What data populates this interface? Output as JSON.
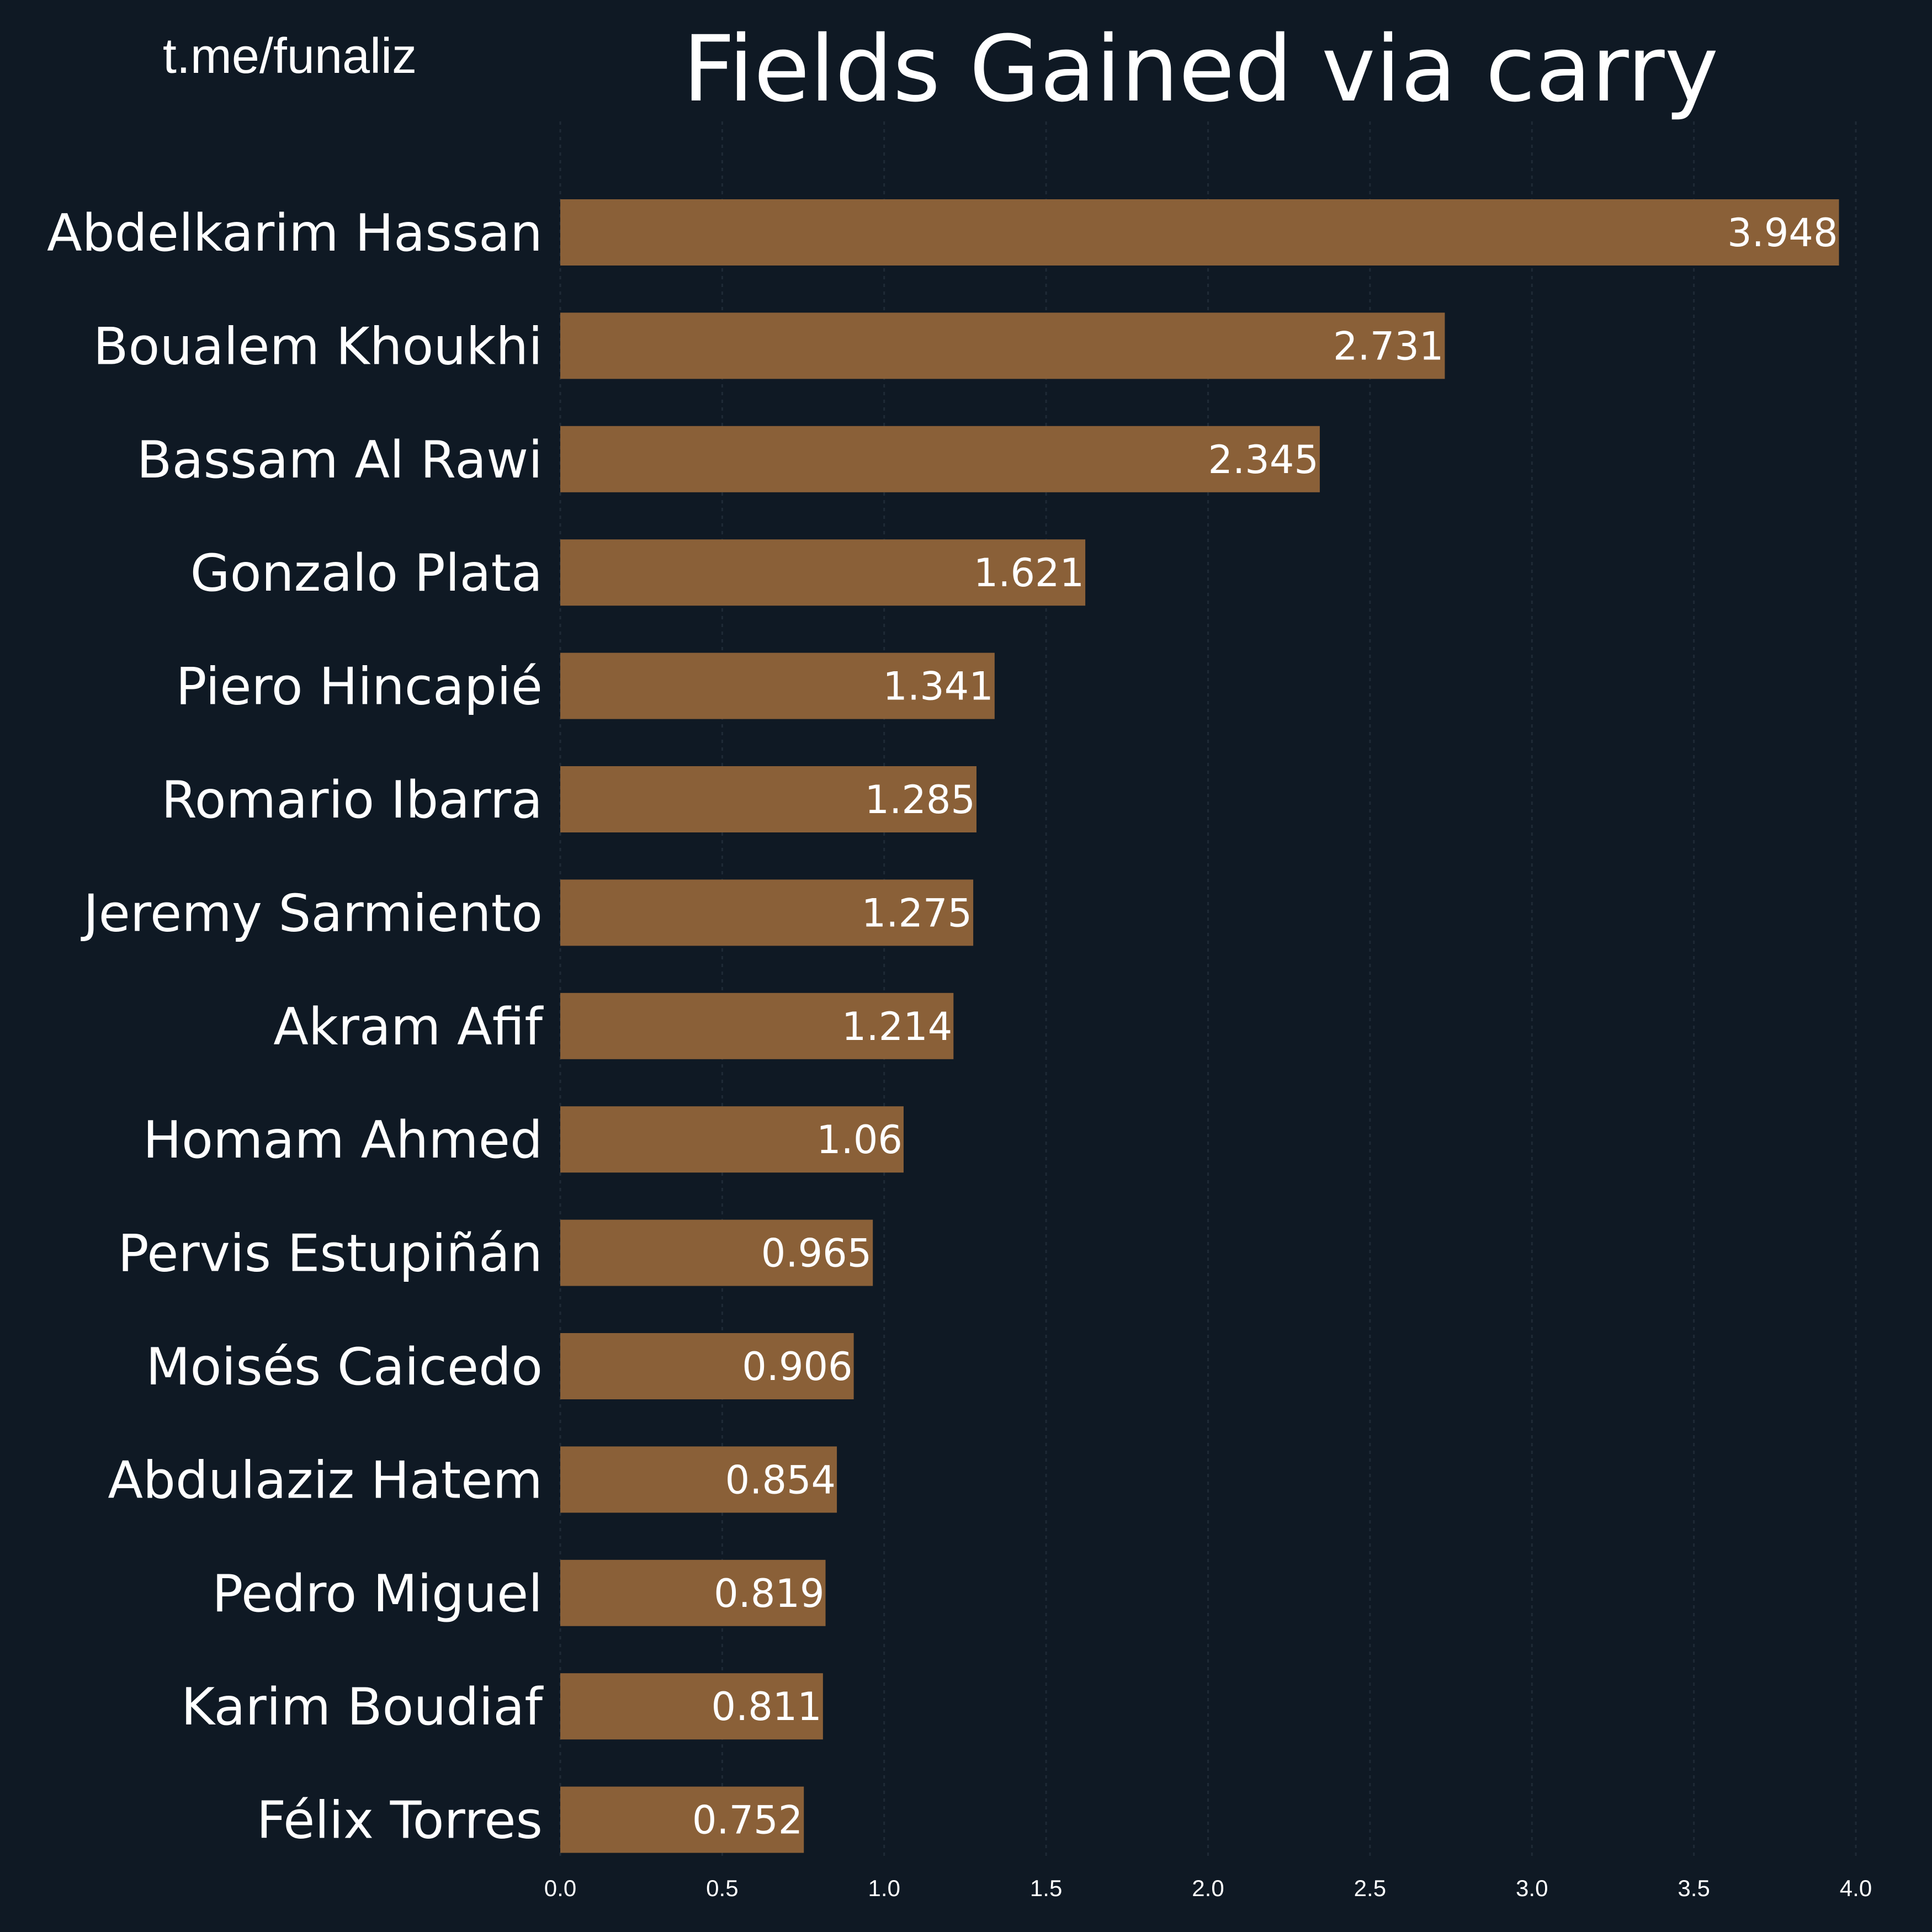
{
  "watermark": "t.me/funaliz",
  "chart_data": {
    "type": "bar",
    "orientation": "horizontal",
    "title": "Fields Gained via carry",
    "xlabel": "",
    "ylabel": "",
    "xlim": [
      0,
      4.0
    ],
    "xticks": [
      "0.0",
      "0.5",
      "1.0",
      "1.5",
      "2.0",
      "2.5",
      "3.0",
      "3.5",
      "4.0"
    ],
    "grid": true,
    "bar_color": "#8a6038",
    "background_color": "#0f1924",
    "text_color": "#ffffff",
    "categories": [
      "Abdelkarim Hassan",
      "Boualem Khoukhi",
      "Bassam Al Rawi",
      "Gonzalo Plata",
      "Piero Hincapié",
      "Romario Ibarra",
      "Jeremy Sarmiento",
      "Akram Afif",
      "Homam Ahmed",
      "Pervis Estupiñán",
      "Moisés Caicedo",
      "Abdulaziz Hatem",
      "Pedro Miguel",
      "Karim Boudiaf",
      "Félix Torres"
    ],
    "values": [
      3.948,
      2.731,
      2.345,
      1.621,
      1.341,
      1.285,
      1.275,
      1.214,
      1.06,
      0.965,
      0.906,
      0.854,
      0.819,
      0.811,
      0.752
    ],
    "value_labels": [
      "3.948",
      "2.731",
      "2.345",
      "1.621",
      "1.341",
      "1.285",
      "1.275",
      "1.214",
      "1.06",
      "0.965",
      "0.906",
      "0.854",
      "0.819",
      "0.811",
      "0.752"
    ]
  }
}
